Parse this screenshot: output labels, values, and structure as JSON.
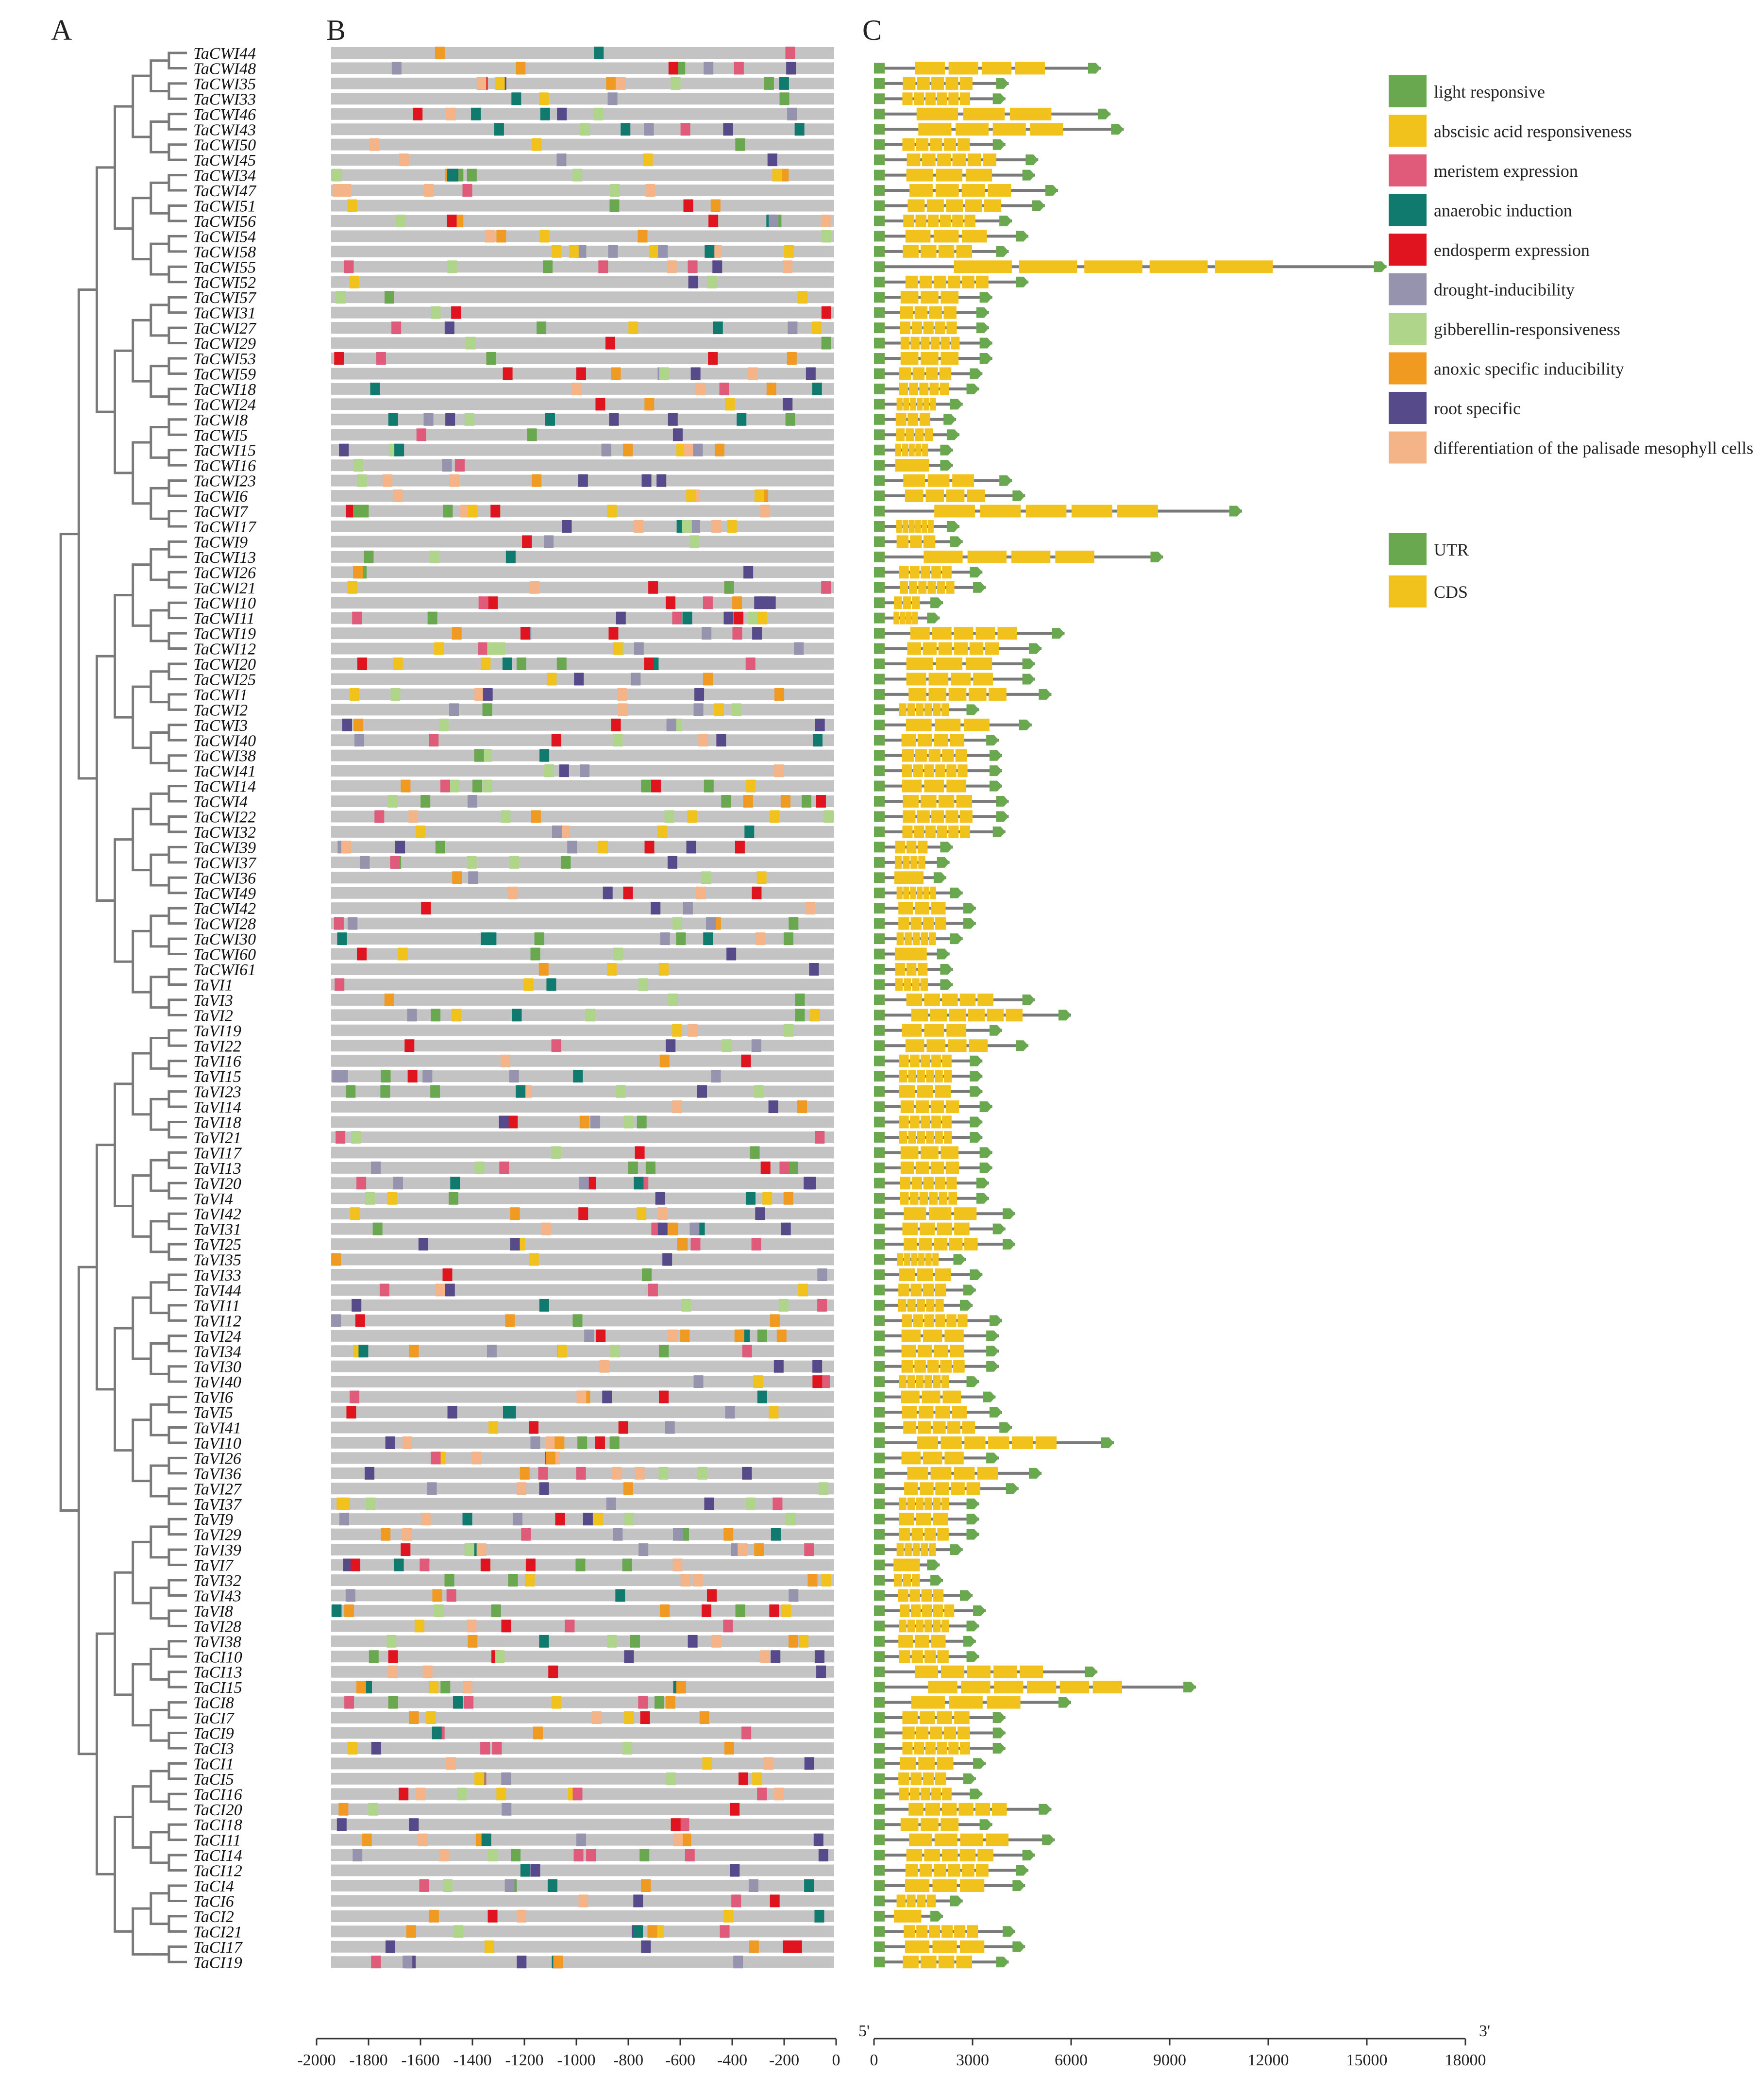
{
  "panels": {
    "a": "A",
    "b": "B",
    "c": "C"
  },
  "legend": {
    "elements": [
      {
        "label": "light responsive",
        "color": "#6aa84f"
      },
      {
        "label": "abscisic acid responsiveness",
        "color": "#f1c21b"
      },
      {
        "label": "meristem expression",
        "color": "#e05a7a"
      },
      {
        "label": "anaerobic induction",
        "color": "#107a6e"
      },
      {
        "label": "endosperm expression",
        "color": "#e0141e"
      },
      {
        "label": "drought-inducibility",
        "color": "#9593ad"
      },
      {
        "label": "gibberellin-responsiveness",
        "color": "#afd58a"
      },
      {
        "label": "anoxic specific inducibility",
        "color": "#f09a22"
      },
      {
        "label": "root specific",
        "color": "#574a8a"
      },
      {
        "label": "differentiation of the palisade mesophyll cells",
        "color": "#f4b488"
      }
    ],
    "structure": [
      {
        "label": "UTR",
        "color": "#6aa84f"
      },
      {
        "label": "CDS",
        "color": "#f1c21b"
      }
    ]
  },
  "chart_data": [
    {
      "type": "promoter-cis-element-map",
      "panel": "B",
      "xlim": [
        -2000,
        0
      ],
      "ticks": [
        -2000,
        -1800,
        -1600,
        -1400,
        -1200,
        -1000,
        -800,
        -600,
        -400,
        -200,
        0
      ],
      "tick_labels": [
        "-2000",
        "-1800",
        "-1600",
        "-1400",
        "-1200",
        "-1000",
        "-800",
        "-600",
        "-400",
        "-200",
        "0"
      ]
    },
    {
      "type": "gene-structure",
      "panel": "C",
      "xlim": [
        0,
        18000
      ],
      "ticks": [
        0,
        3000,
        6000,
        9000,
        12000,
        15000,
        18000
      ],
      "tick_labels": [
        "0",
        "3000",
        "6000",
        "9000",
        "12000",
        "15000",
        "18000"
      ],
      "end5": "5'",
      "end3": "3'"
    }
  ],
  "genes": [
    {
      "name": "TaCWI44",
      "len": 0
    },
    {
      "name": "TaCWI48",
      "len": 6900
    },
    {
      "name": "TaCWI35",
      "len": 4100
    },
    {
      "name": "TaCWI33",
      "len": 4000
    },
    {
      "name": "TaCWI46",
      "len": 7200
    },
    {
      "name": "TaCWI43",
      "len": 7600
    },
    {
      "name": "TaCWI50",
      "len": 4000
    },
    {
      "name": "TaCWI45",
      "len": 5000
    },
    {
      "name": "TaCWI34",
      "len": 4900
    },
    {
      "name": "TaCWI47",
      "len": 5600
    },
    {
      "name": "TaCWI51",
      "len": 5200
    },
    {
      "name": "TaCWI56",
      "len": 4200
    },
    {
      "name": "TaCWI54",
      "len": 4700
    },
    {
      "name": "TaCWI58",
      "len": 4100
    },
    {
      "name": "TaCWI55",
      "len": 15600
    },
    {
      "name": "TaCWI52",
      "len": 4700
    },
    {
      "name": "TaCWI57",
      "len": 3600
    },
    {
      "name": "TaCWI31",
      "len": 3500
    },
    {
      "name": "TaCWI27",
      "len": 3500
    },
    {
      "name": "TaCWI29",
      "len": 3600
    },
    {
      "name": "TaCWI53",
      "len": 3600
    },
    {
      "name": "TaCWI59",
      "len": 3300
    },
    {
      "name": "TaCWI18",
      "len": 3200
    },
    {
      "name": "TaCWI24",
      "len": 2700
    },
    {
      "name": "TaCWI8",
      "len": 2500
    },
    {
      "name": "TaCWI5",
      "len": 2600
    },
    {
      "name": "TaCWI15",
      "len": 2400
    },
    {
      "name": "TaCWI16",
      "len": 2400
    },
    {
      "name": "TaCWI23",
      "len": 4200
    },
    {
      "name": "TaCWI6",
      "len": 4600
    },
    {
      "name": "TaCWI7",
      "len": 11200
    },
    {
      "name": "TaCWI17",
      "len": 2600
    },
    {
      "name": "TaCWI9",
      "len": 2700
    },
    {
      "name": "TaCWI13",
      "len": 8800
    },
    {
      "name": "TaCWI26",
      "len": 3300
    },
    {
      "name": "TaCWI21",
      "len": 3400
    },
    {
      "name": "TaCWI10",
      "len": 2100
    },
    {
      "name": "TaCWI11",
      "len": 2000
    },
    {
      "name": "TaCWI19",
      "len": 5800
    },
    {
      "name": "TaCWI12",
      "len": 5100
    },
    {
      "name": "TaCWI20",
      "len": 4900
    },
    {
      "name": "TaCWI25",
      "len": 4900
    },
    {
      "name": "TaCWI1",
      "len": 5400
    },
    {
      "name": "TaCWI2",
      "len": 3200
    },
    {
      "name": "TaCWI3",
      "len": 4800
    },
    {
      "name": "TaCWI40",
      "len": 3800
    },
    {
      "name": "TaCWI38",
      "len": 3900
    },
    {
      "name": "TaCWI41",
      "len": 3900
    },
    {
      "name": "TaCWI14",
      "len": 3900
    },
    {
      "name": "TaCWI4",
      "len": 4100
    },
    {
      "name": "TaCWI22",
      "len": 4100
    },
    {
      "name": "TaCWI32",
      "len": 4000
    },
    {
      "name": "TaCWI39",
      "len": 2400
    },
    {
      "name": "TaCWI37",
      "len": 2300
    },
    {
      "name": "TaCWI36",
      "len": 2200
    },
    {
      "name": "TaCWI49",
      "len": 2700
    },
    {
      "name": "TaCWI42",
      "len": 3100
    },
    {
      "name": "TaCWI28",
      "len": 3100
    },
    {
      "name": "TaCWI30",
      "len": 2700
    },
    {
      "name": "TaCWI60",
      "len": 2300
    },
    {
      "name": "TaCWI61",
      "len": 2400
    },
    {
      "name": "TaVI1",
      "len": 2400
    },
    {
      "name": "TaVI3",
      "len": 4900
    },
    {
      "name": "TaVI2",
      "len": 6000
    },
    {
      "name": "TaVI19",
      "len": 3900
    },
    {
      "name": "TaVI22",
      "len": 4700
    },
    {
      "name": "TaVI16",
      "len": 3300
    },
    {
      "name": "TaVI15",
      "len": 3300
    },
    {
      "name": "TaVI23",
      "len": 3300
    },
    {
      "name": "TaVI14",
      "len": 3600
    },
    {
      "name": "TaVI18",
      "len": 3300
    },
    {
      "name": "TaVI21",
      "len": 3300
    },
    {
      "name": "TaVI17",
      "len": 3600
    },
    {
      "name": "TaVI13",
      "len": 3600
    },
    {
      "name": "TaVI20",
      "len": 3500
    },
    {
      "name": "TaVI4",
      "len": 3500
    },
    {
      "name": "TaVI42",
      "len": 4300
    },
    {
      "name": "TaVI31",
      "len": 4000
    },
    {
      "name": "TaVI25",
      "len": 4300
    },
    {
      "name": "TaVI35",
      "len": 2800
    },
    {
      "name": "TaVI33",
      "len": 3300
    },
    {
      "name": "TaVI44",
      "len": 3100
    },
    {
      "name": "TaVI11",
      "len": 3000
    },
    {
      "name": "TaVI12",
      "len": 3900
    },
    {
      "name": "TaVI24",
      "len": 3800
    },
    {
      "name": "TaVI34",
      "len": 3800
    },
    {
      "name": "TaVI30",
      "len": 3800
    },
    {
      "name": "TaVI40",
      "len": 3200
    },
    {
      "name": "TaVI6",
      "len": 3700
    },
    {
      "name": "TaVI5",
      "len": 3900
    },
    {
      "name": "TaVI41",
      "len": 4200
    },
    {
      "name": "TaVI10",
      "len": 7300
    },
    {
      "name": "TaVI26",
      "len": 3800
    },
    {
      "name": "TaVI36",
      "len": 5100
    },
    {
      "name": "TaVI27",
      "len": 4400
    },
    {
      "name": "TaVI37",
      "len": 3200
    },
    {
      "name": "TaVI9",
      "len": 3200
    },
    {
      "name": "TaVI29",
      "len": 3200
    },
    {
      "name": "TaVI39",
      "len": 2700
    },
    {
      "name": "TaVI7",
      "len": 2000
    },
    {
      "name": "TaVI32",
      "len": 2100
    },
    {
      "name": "TaVI43",
      "len": 3000
    },
    {
      "name": "TaVI8",
      "len": 3400
    },
    {
      "name": "TaVI28",
      "len": 3200
    },
    {
      "name": "TaVI38",
      "len": 3100
    },
    {
      "name": "TaCI10",
      "len": 3200
    },
    {
      "name": "TaCI13",
      "len": 6800
    },
    {
      "name": "TaCI15",
      "len": 9800
    },
    {
      "name": "TaCI8",
      "len": 6000
    },
    {
      "name": "TaCI7",
      "len": 4000
    },
    {
      "name": "TaCI9",
      "len": 4000
    },
    {
      "name": "TaCI3",
      "len": 4000
    },
    {
      "name": "TaCI1",
      "len": 3400
    },
    {
      "name": "TaCI5",
      "len": 3100
    },
    {
      "name": "TaCI16",
      "len": 3300
    },
    {
      "name": "TaCI20",
      "len": 5400
    },
    {
      "name": "TaCI18",
      "len": 3600
    },
    {
      "name": "TaCI11",
      "len": 5500
    },
    {
      "name": "TaCI14",
      "len": 4900
    },
    {
      "name": "TaCI12",
      "len": 4700
    },
    {
      "name": "TaCI4",
      "len": 4600
    },
    {
      "name": "TaCI6",
      "len": 2700
    },
    {
      "name": "TaCI2",
      "len": 2100
    },
    {
      "name": "TaCI21",
      "len": 4300
    },
    {
      "name": "TaCI17",
      "len": 4600
    },
    {
      "name": "TaCI19",
      "len": 4100
    }
  ]
}
